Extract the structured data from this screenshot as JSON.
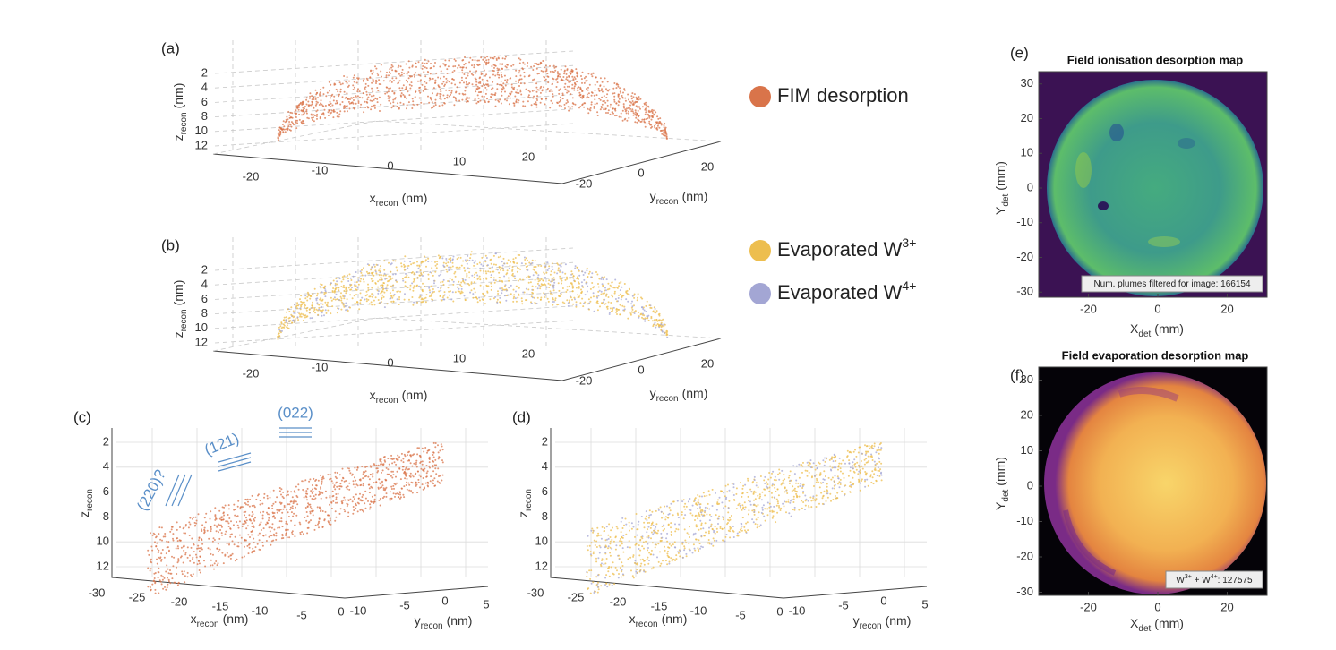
{
  "panels": [
    {
      "label": "(a)",
      "z_axis": {
        "base": "z",
        "sub": "recon",
        "unit": "(nm)"
      },
      "z_ticks": [
        2,
        4,
        6,
        8,
        10,
        12
      ],
      "x_axis": {
        "base": "x",
        "sub": "recon",
        "unit": "(nm)"
      },
      "x_ticks": [
        -20,
        -10,
        0,
        10,
        20
      ],
      "y_axis": {
        "base": "y",
        "sub": "recon",
        "unit": "(nm)"
      },
      "y_ticks": [
        -20,
        0,
        20
      ]
    },
    {
      "label": "(b)",
      "z_axis": {
        "base": "z",
        "sub": "recon",
        "unit": "(nm)"
      },
      "z_ticks": [
        2,
        4,
        6,
        8,
        10,
        12
      ],
      "x_axis": {
        "base": "x",
        "sub": "recon",
        "unit": "(nm)"
      },
      "x_ticks": [
        -20,
        -10,
        0,
        10,
        20
      ],
      "y_axis": {
        "base": "y",
        "sub": "recon",
        "unit": "(nm)"
      },
      "y_ticks": [
        -20,
        0,
        20
      ]
    },
    {
      "label": "(c)",
      "z_axis": {
        "base": "z",
        "sub": "recon"
      },
      "z_ticks": [
        2,
        4,
        6,
        8,
        10,
        12
      ],
      "x_axis": {
        "base": "x",
        "sub": "recon",
        "unit": "(nm)"
      },
      "x_ticks": [
        -30,
        -25,
        -20,
        -15,
        -10,
        -5,
        0
      ],
      "y_axis": {
        "base": "y",
        "sub": "recon",
        "unit": "(nm)"
      },
      "y_ticks": [
        -10,
        -5,
        0,
        5
      ],
      "annotations": [
        "(220)?",
        "(121)",
        "(022)"
      ]
    },
    {
      "label": "(d)",
      "z_axis": {
        "base": "z",
        "sub": "recon"
      },
      "z_ticks": [
        2,
        4,
        6,
        8,
        10,
        12
      ],
      "x_axis": {
        "base": "x",
        "sub": "recon",
        "unit": "(nm)"
      },
      "x_ticks": [
        -30,
        -25,
        -20,
        -15,
        -10,
        -5,
        0
      ],
      "y_axis": {
        "base": "y",
        "sub": "recon",
        "unit": "(nm)"
      },
      "y_ticks": [
        -10,
        -5,
        0,
        5
      ]
    }
  ],
  "legend": [
    {
      "text": "FIM desorption",
      "color": "#d9744a"
    },
    {
      "text": "Evaporated W",
      "sup": "3+",
      "color": "#edbe4e"
    },
    {
      "text": "Evaporated W",
      "sup": "4+",
      "color": "#a3a6d4"
    }
  ],
  "maps": [
    {
      "label": "(e)",
      "title": "Field ionisation desorption map",
      "x_axis": {
        "base": "X",
        "sub": "det",
        "unit": "(mm)"
      },
      "x_ticks": [
        -20,
        0,
        20
      ],
      "y_axis": {
        "base": "Y",
        "sub": "det",
        "unit": "(mm)"
      },
      "y_ticks": [
        30,
        20,
        10,
        0,
        -10,
        -20,
        -30
      ],
      "note": [
        {
          "text": "Num. plumes filtered for image: 166154"
        }
      ]
    },
    {
      "label": "(f)",
      "title": "Field evaporation desorption map",
      "x_axis": {
        "base": "X",
        "sub": "det",
        "unit": "(mm)"
      },
      "x_ticks": [
        -20,
        0,
        20
      ],
      "y_axis": {
        "base": "Y",
        "sub": "det",
        "unit": "(mm)"
      },
      "y_ticks": [
        30,
        20,
        10,
        0,
        -10,
        -20,
        -30
      ],
      "note": [
        {
          "text": "W",
          "sup": "3+"
        },
        {
          "text": " + W",
          "sup": "4+"
        },
        {
          "text": ": 127575"
        }
      ]
    }
  ]
}
